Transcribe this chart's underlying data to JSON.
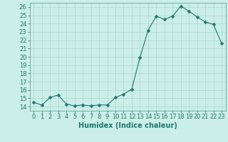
{
  "x": [
    0,
    1,
    2,
    3,
    4,
    5,
    6,
    7,
    8,
    9,
    10,
    11,
    12,
    13,
    14,
    15,
    16,
    17,
    18,
    19,
    20,
    21,
    22,
    23
  ],
  "y": [
    14.5,
    14.2,
    15.1,
    15.4,
    14.3,
    14.1,
    14.2,
    14.1,
    14.2,
    14.2,
    15.1,
    15.5,
    16.1,
    19.9,
    23.2,
    24.9,
    24.5,
    24.9,
    26.1,
    25.5,
    24.8,
    24.2,
    23.9,
    21.6
  ],
  "line_color": "#1a7a6e",
  "marker": "D",
  "markersize": 2.5,
  "linewidth": 0.8,
  "xlabel": "Humidex (Indice chaleur)",
  "xlim": [
    -0.5,
    23.5
  ],
  "ylim": [
    13.5,
    26.5
  ],
  "yticks": [
    14,
    15,
    16,
    17,
    18,
    19,
    20,
    21,
    22,
    23,
    24,
    25,
    26
  ],
  "xticks": [
    0,
    1,
    2,
    3,
    4,
    5,
    6,
    7,
    8,
    9,
    10,
    11,
    12,
    13,
    14,
    15,
    16,
    17,
    18,
    19,
    20,
    21,
    22,
    23
  ],
  "bg_color": "#cceee8",
  "grid_color": "#aad8d0",
  "xlabel_fontsize": 7,
  "tick_fontsize": 6
}
